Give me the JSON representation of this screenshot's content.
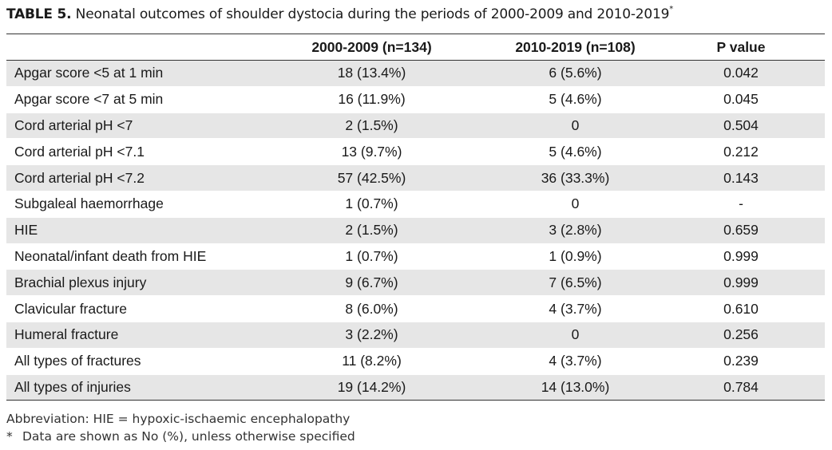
{
  "caption": {
    "label": "TABLE 5.",
    "text": "Neonatal outcomes of shoulder dystocia during the periods of 2000-2009 and 2010-2019",
    "marker": "*"
  },
  "table": {
    "headers": [
      "",
      "2000-2009 (n=134)",
      "2010-2019 (n=108)",
      "P value"
    ],
    "rows": [
      [
        "Apgar score <5 at 1 min",
        "18 (13.4%)",
        "6 (5.6%)",
        "0.042"
      ],
      [
        "Apgar score <7 at 5 min",
        "16 (11.9%)",
        "5 (4.6%)",
        "0.045"
      ],
      [
        "Cord arterial pH <7",
        "2 (1.5%)",
        "0",
        "0.504"
      ],
      [
        "Cord arterial pH <7.1",
        "13 (9.7%)",
        "5 (4.6%)",
        "0.212"
      ],
      [
        "Cord arterial pH <7.2",
        "57 (42.5%)",
        "36 (33.3%)",
        "0.143"
      ],
      [
        "Subgaleal haemorrhage",
        "1 (0.7%)",
        "0",
        "-"
      ],
      [
        "HIE",
        "2 (1.5%)",
        "3 (2.8%)",
        "0.659"
      ],
      [
        "Neonatal/infant death from HIE",
        "1 (0.7%)",
        "1 (0.9%)",
        "0.999"
      ],
      [
        "Brachial plexus injury",
        "9 (6.7%)",
        "7 (6.5%)",
        "0.999"
      ],
      [
        "Clavicular fracture",
        "8 (6.0%)",
        "4 (3.7%)",
        "0.610"
      ],
      [
        "Humeral fracture",
        "3 (2.2%)",
        "0",
        "0.256"
      ],
      [
        "All types of fractures",
        "11 (8.2%)",
        "4 (3.7%)",
        "0.239"
      ],
      [
        "All types of injuries",
        "19 (14.2%)",
        "14 (13.0%)",
        "0.784"
      ]
    ]
  },
  "notes": {
    "abbreviation": "Abbreviation: HIE = hypoxic-ischaemic encephalopathy",
    "footnote_marker": "*",
    "footnote_text": "Data are shown as No (%), unless otherwise specified"
  },
  "colors": {
    "stripe": "#e6e6e6",
    "text": "#1a1a1a",
    "rule": "#333333"
  }
}
